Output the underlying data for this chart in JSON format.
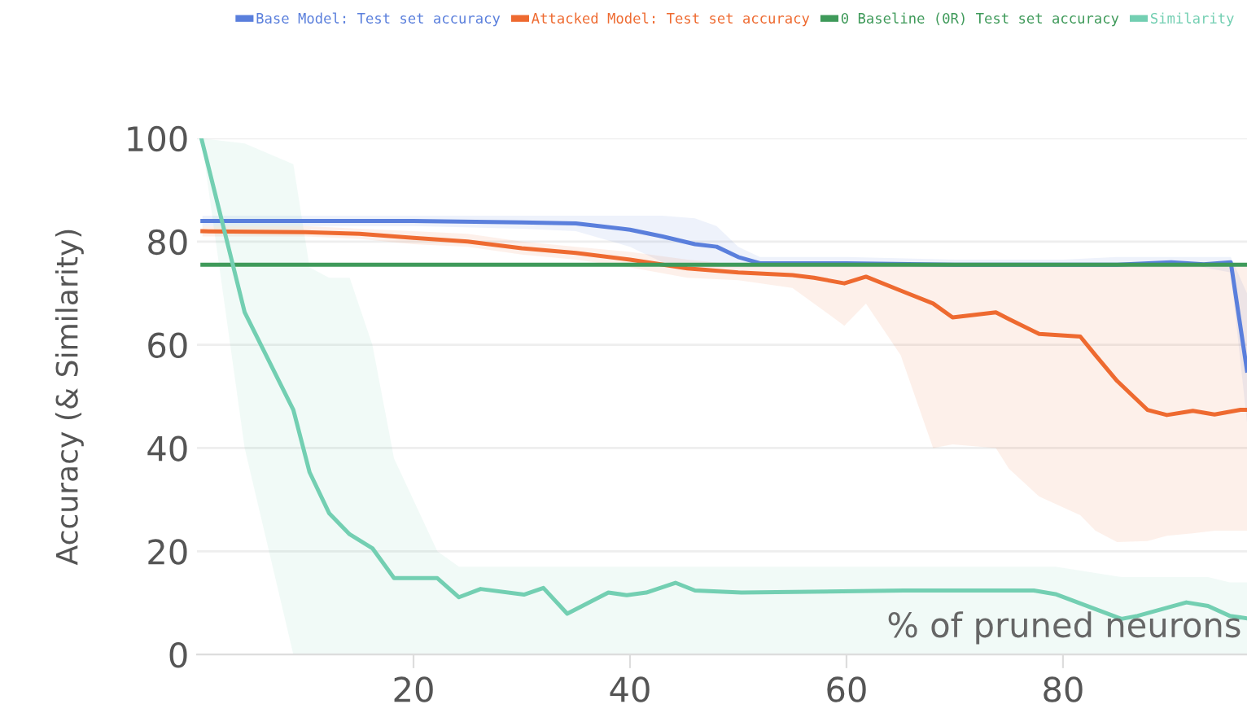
{
  "chart_data": {
    "type": "line",
    "xlabel": "% of pruned neurons",
    "ylabel": "Accuracy (& Similarity)",
    "xlim": [
      0,
      97
    ],
    "ylim": [
      0,
      100
    ],
    "xticks": [
      20,
      40,
      60,
      80
    ],
    "yticks": [
      0,
      20,
      40,
      60,
      80,
      100
    ],
    "grid": "y",
    "legend": "top",
    "marker": "none",
    "line_style": "solid",
    "series": [
      {
        "name": "Base Model: Test set accuracy",
        "color": "#5a7fdc",
        "x": [
          0.5,
          10,
          20,
          30,
          35,
          40,
          43,
          46,
          48,
          50,
          52,
          60,
          70,
          80,
          85,
          90,
          93,
          95.5,
          97
        ],
        "values": [
          84,
          84,
          84,
          83.7,
          83.5,
          82.3,
          81,
          79.5,
          79,
          77,
          75.8,
          75.8,
          75.5,
          75.5,
          75.5,
          76,
          75.6,
          76,
          55
        ],
        "lower": [
          83,
          83,
          83,
          82.5,
          82,
          79,
          76,
          75,
          75,
          75,
          75,
          75,
          75,
          75,
          75,
          75,
          75,
          74,
          45
        ],
        "upper": [
          85,
          85,
          85,
          85,
          85,
          85,
          85,
          84.5,
          83,
          79,
          77,
          77,
          76.5,
          76.5,
          77,
          77,
          77,
          77,
          70
        ]
      },
      {
        "name": "Attacked Model: Test set accuracy",
        "color": "#ee6a30",
        "x": [
          0.5,
          10,
          15,
          20,
          25,
          30,
          35,
          40,
          45.3,
          50,
          55,
          57,
          59.8,
          61.8,
          65,
          68,
          69.8,
          73.8,
          75,
          77.8,
          81.6,
          83,
          85,
          87.8,
          89.6,
          92,
          94,
          96.4,
          97
        ],
        "values": [
          82,
          81.8,
          81.5,
          80.7,
          80,
          78.7,
          77.8,
          76.5,
          74.8,
          74,
          73.5,
          73,
          71.9,
          73.2,
          70.5,
          68,
          65.3,
          66.3,
          65,
          62.1,
          61.6,
          58,
          53,
          47.4,
          46.4,
          47.2,
          46.5,
          47.4,
          47.4
        ],
        "lower": [
          81,
          81,
          80.5,
          79.5,
          79,
          77.5,
          76.5,
          75,
          73,
          72.5,
          71,
          68,
          63.7,
          68,
          58,
          40,
          40.7,
          40,
          36,
          30.6,
          27,
          24,
          21.8,
          22,
          23,
          23.5,
          24,
          24,
          24
        ],
        "upper": [
          83,
          83,
          82.5,
          82,
          81.5,
          80,
          79,
          78,
          76.5,
          75.5,
          75.5,
          75.5,
          75.5,
          75.5,
          75.5,
          75.5,
          75.5,
          75.5,
          75.5,
          75.5,
          75.5,
          75.5,
          75.5,
          75.5,
          75.5,
          75.5,
          75.5,
          75.5,
          75.5
        ]
      },
      {
        "name": "0 Baseline (0R) Test set accuracy",
        "color": "#3f9a5a",
        "x": [
          0.5,
          97
        ],
        "values": [
          75.5,
          75.5
        ]
      },
      {
        "name": "Similarity",
        "color": "#73cfb2",
        "x": [
          0.4,
          4.4,
          8.9,
          10.4,
          12.2,
          14.1,
          16.2,
          18.2,
          22.2,
          24.2,
          26.2,
          30.2,
          32,
          34.2,
          38,
          39.7,
          41.5,
          44.2,
          46,
          50.3,
          65.3,
          77.3,
          79.3,
          85.4,
          86.9,
          91.4,
          93.4,
          95.4,
          97
        ],
        "values": [
          100,
          66.3,
          47.4,
          35.3,
          27.4,
          23.3,
          20.6,
          14.8,
          14.8,
          11.1,
          12.7,
          11.6,
          12.9,
          7.9,
          12,
          11.5,
          12,
          13.9,
          12.4,
          12,
          12.4,
          12.4,
          11.7,
          6.9,
          7.5,
          10.1,
          9.4,
          7.5,
          7
        ],
        "lower": [
          100,
          40,
          0,
          0,
          0,
          0,
          0,
          0,
          0,
          0,
          0,
          0,
          0,
          0,
          0,
          0,
          0,
          0,
          0,
          0,
          0,
          0,
          0,
          0,
          0,
          0,
          0,
          0,
          0
        ],
        "upper": [
          100,
          99,
          95,
          75,
          73,
          73,
          60,
          38,
          20,
          17,
          17,
          17,
          17,
          17,
          17,
          17,
          17,
          17,
          17,
          17,
          17,
          17,
          17,
          15,
          15,
          15,
          15,
          14,
          14
        ]
      }
    ]
  }
}
